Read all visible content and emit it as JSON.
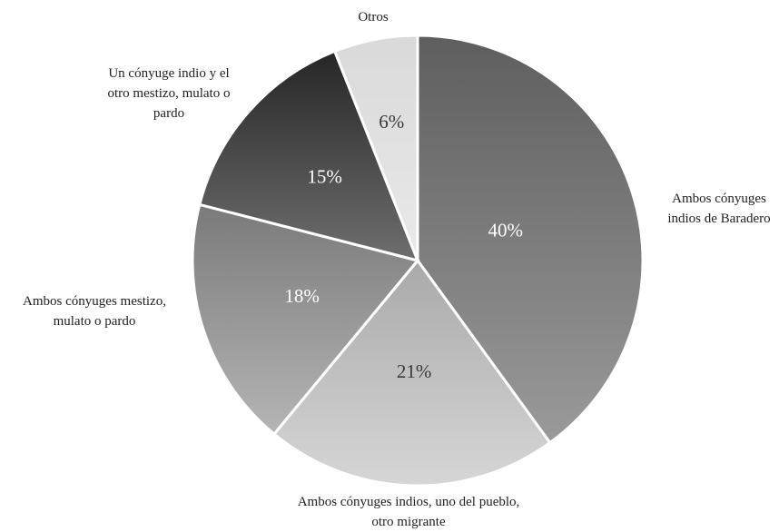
{
  "chart_data": {
    "type": "pie",
    "title": "",
    "slices": [
      {
        "label": "Ambos cónyuges indios de Baradero",
        "value": 40,
        "display": "40%"
      },
      {
        "label": "Ambos cónyuges indios, uno del pueblo, otro migrante",
        "value": 21,
        "display": "21%"
      },
      {
        "label": "Ambos cónyuges mestizo, mulato o pardo",
        "value": 18,
        "display": "18%"
      },
      {
        "label": "Un cónyuge indio y el otro mestizo, mulato o pardo",
        "value": 15,
        "display": "15%"
      },
      {
        "label": "Otros",
        "value": 6,
        "display": "6%"
      }
    ],
    "start": "12 o'clock",
    "direction": "clockwise"
  }
}
